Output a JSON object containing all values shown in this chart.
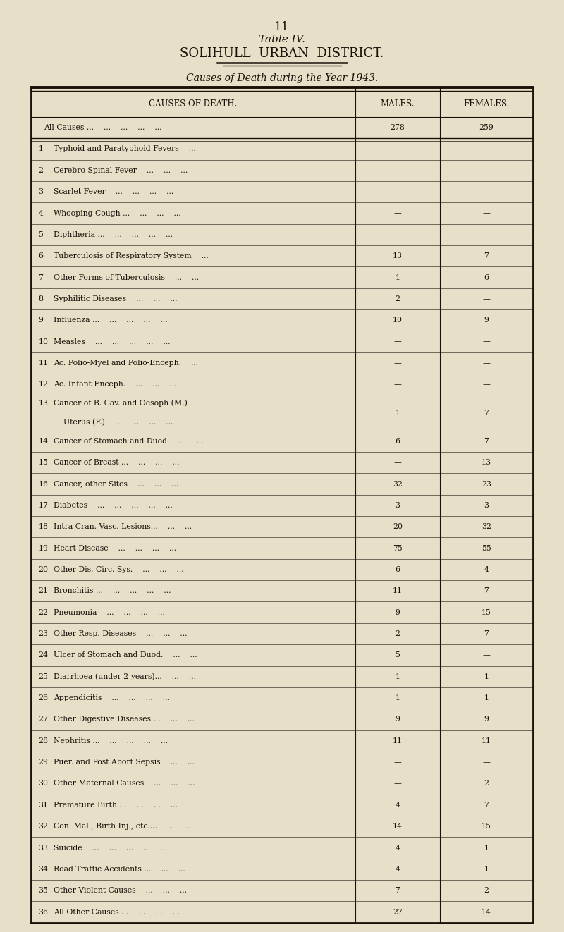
{
  "page_number": "11",
  "title_line1": "Table IV.",
  "title_line2": "SOLIHULL  URBAN  DISTRICT.",
  "subtitle": "Causes of Death during the Year 1943.",
  "col_headers": [
    "CAUSES OF DEATH.",
    "MALES.",
    "FEMALES."
  ],
  "bg_color": "#e8dfc8",
  "text_color": "#1a1008",
  "rows": [
    {
      "label": "All Causes ...    ...    ...    ...    ...",
      "num": "",
      "males": "278",
      "females": "259",
      "bold": true,
      "double_line": true,
      "two_line": false
    },
    {
      "label": "Typhoid and Paratyphoid Fevers    ...",
      "num": "1",
      "males": "—",
      "females": "—",
      "bold": false,
      "double_line": false,
      "two_line": false
    },
    {
      "label": "Cerebro Spinal Fever    ...    ...    ...",
      "num": "2",
      "males": "—",
      "females": "—",
      "bold": false,
      "double_line": false,
      "two_line": false
    },
    {
      "label": "Scarlet Fever    ...    ...    ...    ...",
      "num": "3",
      "males": "—",
      "females": "—",
      "bold": false,
      "double_line": false,
      "two_line": false
    },
    {
      "label": "Whooping Cough ...    ...    ...    ...",
      "num": "4",
      "males": "—",
      "females": "—",
      "bold": false,
      "double_line": false,
      "two_line": false
    },
    {
      "label": "Diphtheria ...    ...    ...    ...    ...",
      "num": "5",
      "males": "—",
      "females": "—",
      "bold": false,
      "double_line": false,
      "two_line": false
    },
    {
      "label": "Tuberculosis of Respiratory System    ...",
      "num": "6",
      "males": "13",
      "females": "7",
      "bold": false,
      "double_line": false,
      "two_line": false
    },
    {
      "label": "Other Forms of Tuberculosis    ...    ...",
      "num": "7",
      "males": "1",
      "females": "6",
      "bold": false,
      "double_line": false,
      "two_line": false
    },
    {
      "label": "Syphilitic Diseases    ...    ...    ...",
      "num": "8",
      "males": "2",
      "females": "—",
      "bold": false,
      "double_line": false,
      "two_line": false
    },
    {
      "label": "Influenza ...    ...    ...    ...    ...",
      "num": "9",
      "males": "10",
      "females": "9",
      "bold": false,
      "double_line": false,
      "two_line": false
    },
    {
      "label": "Measles    ...    ...    ...    ...    ...",
      "num": "10",
      "males": "—",
      "females": "—",
      "bold": false,
      "double_line": false,
      "two_line": false
    },
    {
      "label": "Ac. Polio-Myel and Polio-Enceph.    ...",
      "num": "11",
      "males": "—",
      "females": "—",
      "bold": false,
      "double_line": false,
      "two_line": false
    },
    {
      "label": "Ac. Infant Enceph.    ...    ...    ...",
      "num": "12",
      "males": "—",
      "females": "—",
      "bold": false,
      "double_line": false,
      "two_line": false
    },
    {
      "label_line1": "Cancer of B. Cav. and Oesoph (M.)",
      "label_line2": "    Uterus (F.)    ...    ...    ...    ...",
      "num": "13",
      "males": "1",
      "females": "7",
      "bold": false,
      "double_line": false,
      "two_line": true
    },
    {
      "label": "Cancer of Stomach and Duod.    ...    ...",
      "num": "14",
      "males": "6",
      "females": "7",
      "bold": false,
      "double_line": false,
      "two_line": false
    },
    {
      "label": "Cancer of Breast ...    ...    ...    ...",
      "num": "15",
      "males": "—",
      "females": "13",
      "bold": false,
      "double_line": false,
      "two_line": false
    },
    {
      "label": "Cancer, other Sites    ...    ...    ...",
      "num": "16",
      "males": "32",
      "females": "23",
      "bold": false,
      "double_line": false,
      "two_line": false
    },
    {
      "label": "Diabetes    ...    ...    ...    ...    ...",
      "num": "17",
      "males": "3",
      "females": "3",
      "bold": false,
      "double_line": false,
      "two_line": false
    },
    {
      "label": "Intra Cran. Vasc. Lesions...    ...    ...",
      "num": "18",
      "males": "20",
      "females": "32",
      "bold": false,
      "double_line": false,
      "two_line": false
    },
    {
      "label": "Heart Disease    ...    ...    ...    ...",
      "num": "19",
      "males": "75",
      "females": "55",
      "bold": false,
      "double_line": false,
      "two_line": false
    },
    {
      "label": "Other Dis. Circ. Sys.    ...    ...    ...",
      "num": "20",
      "males": "6",
      "females": "4",
      "bold": false,
      "double_line": false,
      "two_line": false
    },
    {
      "label": "Bronchitis ...    ...    ...    ...    ...",
      "num": "21",
      "males": "11",
      "females": "7",
      "bold": false,
      "double_line": false,
      "two_line": false
    },
    {
      "label": "Pneumonia    ...    ...    ...    ...",
      "num": "22",
      "males": "9",
      "females": "15",
      "bold": false,
      "double_line": false,
      "two_line": false
    },
    {
      "label": "Other Resp. Diseases    ...    ...    ...",
      "num": "23",
      "males": "2",
      "females": "7",
      "bold": false,
      "double_line": false,
      "two_line": false
    },
    {
      "label": "Ulcer of Stomach and Duod.    ...    ...",
      "num": "24",
      "males": "5",
      "females": "—",
      "bold": false,
      "double_line": false,
      "two_line": false
    },
    {
      "label": "Diarrhoea (under 2 years)...    ...    ...",
      "num": "25",
      "males": "1",
      "females": "1",
      "bold": false,
      "double_line": false,
      "two_line": false
    },
    {
      "label": "Appendicitis    ...    ...    ...    ...",
      "num": "26",
      "males": "1",
      "females": "1",
      "bold": false,
      "double_line": false,
      "two_line": false
    },
    {
      "label": "Other Digestive Diseases ...    ...    ...",
      "num": "27",
      "males": "9",
      "females": "9",
      "bold": false,
      "double_line": false,
      "two_line": false
    },
    {
      "label": "Nephritis ...    ...    ...    ...    ...",
      "num": "28",
      "males": "11",
      "females": "11",
      "bold": false,
      "double_line": false,
      "two_line": false
    },
    {
      "label": "Puer. and Post Abort Sepsis    ...    ...",
      "num": "29",
      "males": "—",
      "females": "—",
      "bold": false,
      "double_line": false,
      "two_line": false
    },
    {
      "label": "Other Maternal Causes    ...    ...    ...",
      "num": "30",
      "males": "—",
      "females": "2",
      "bold": false,
      "double_line": false,
      "two_line": false
    },
    {
      "label": "Premature Birth ...    ...    ...    ...",
      "num": "31",
      "males": "4",
      "females": "7",
      "bold": false,
      "double_line": false,
      "two_line": false
    },
    {
      "label": "Con. Mal., Birth Inj., etc....    ...    ...",
      "num": "32",
      "males": "14",
      "females": "15",
      "bold": false,
      "double_line": false,
      "two_line": false
    },
    {
      "label": "Suicide    ...    ...    ...    ...    ...",
      "num": "33",
      "males": "4",
      "females": "1",
      "bold": false,
      "double_line": false,
      "two_line": false
    },
    {
      "label": "Road Traffic Accidents ...    ...    ...",
      "num": "34",
      "males": "4",
      "females": "1",
      "bold": false,
      "double_line": false,
      "two_line": false
    },
    {
      "label": "Other Violent Causes    ...    ...    ...",
      "num": "35",
      "males": "7",
      "females": "2",
      "bold": false,
      "double_line": false,
      "two_line": false
    },
    {
      "label": "All Other Causes ...    ...    ...    ...",
      "num": "36",
      "males": "27",
      "females": "14",
      "bold": false,
      "double_line": false,
      "two_line": false
    }
  ]
}
